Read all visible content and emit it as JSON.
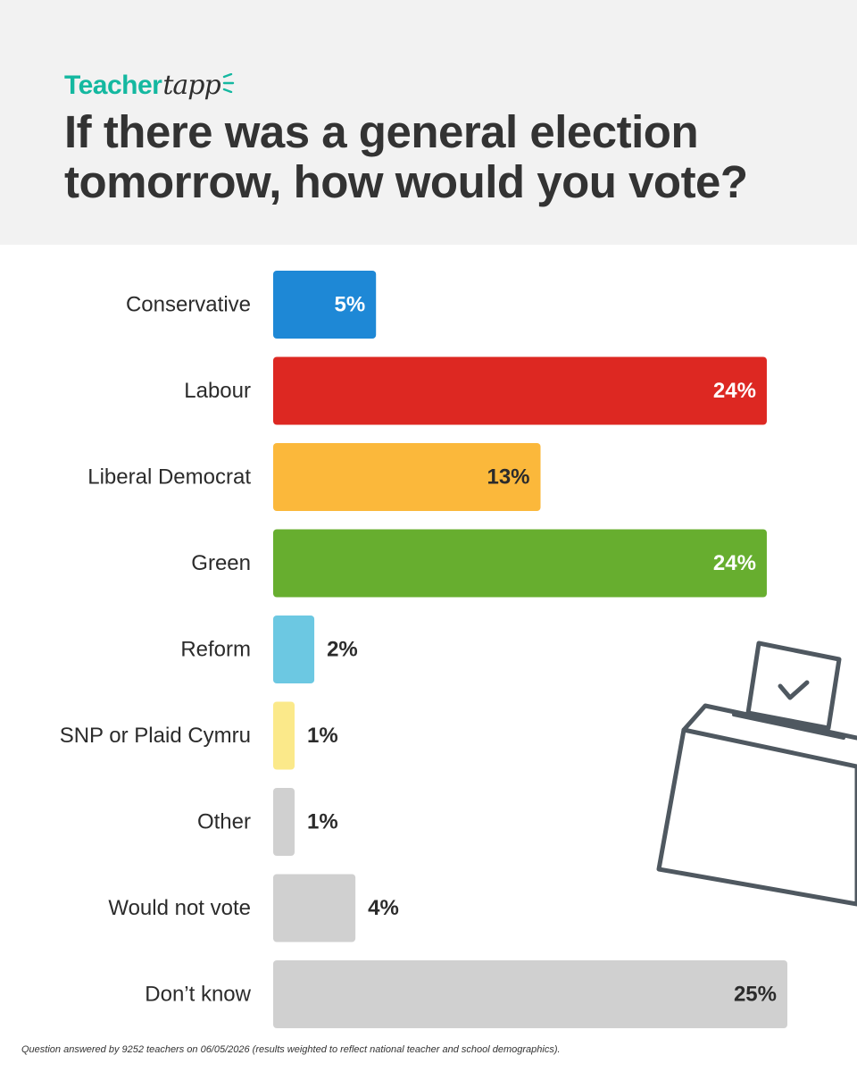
{
  "brand": {
    "word": "Teacher",
    "script": "tapp"
  },
  "colors": {
    "brand_teal": "#14b8a0",
    "header_bg": "#f2f2f2",
    "text": "#333333"
  },
  "chart_data": {
    "type": "bar",
    "orientation": "horizontal",
    "title": "If there was a general election tomorrow, how would you vote?",
    "categories": [
      "Conservative",
      "Labour",
      "Liberal Democrat",
      "Green",
      "Reform",
      "SNP or Plaid Cymru",
      "Other",
      "Would not vote",
      "Don’t know"
    ],
    "values": [
      5,
      24,
      13,
      24,
      2,
      1,
      1,
      4,
      25
    ],
    "value_labels": [
      "5%",
      "24%",
      "13%",
      "24%",
      "2%",
      "1%",
      "1%",
      "4%",
      "25%"
    ],
    "unit": "%",
    "bar_colors": [
      "#1e88d6",
      "#dd2822",
      "#fbb83b",
      "#67ae2f",
      "#6cc8e2",
      "#fbe98a",
      "#d0d0d0",
      "#d0d0d0",
      "#d0d0d0"
    ],
    "label_colors": [
      "#ffffff",
      "#ffffff",
      "#2b2b2b",
      "#ffffff",
      "#2b2b2b",
      "#2b2b2b",
      "#2b2b2b",
      "#2b2b2b",
      "#2b2b2b"
    ],
    "xlim": [
      0,
      25
    ],
    "grid": false,
    "legend": "none"
  },
  "decoration": {
    "icon": "ballot-box-icon"
  },
  "footnote": "Question answered by 9252 teachers on 06/05/2026 (results weighted to reflect national teacher and school demographics)."
}
